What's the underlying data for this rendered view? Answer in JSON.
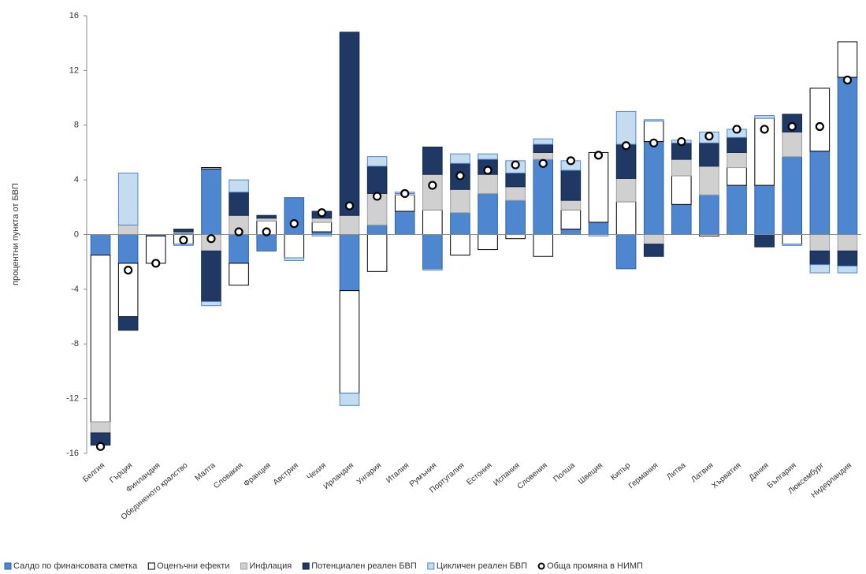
{
  "chart_data": {
    "type": "bar",
    "stacked": true,
    "ylabel": "процентни пункта от БВП",
    "categories": [
      "Белгия",
      "Гърция",
      "Финландия",
      "Обединеното кралство",
      "Малта",
      "Словакия",
      "Франция",
      "Австрия",
      "Чехия",
      "Ирландия",
      "Унгария",
      "Италия",
      "Румъния",
      "Португалия",
      "Естония",
      "Испания",
      "Словения",
      "Полша",
      "Швеция",
      "Кипър",
      "Германия",
      "Литва",
      "Латвия",
      "Хърватия",
      "Дания",
      "България",
      "Люксембург",
      "Нидерландия"
    ],
    "ylim": [
      -16,
      16
    ],
    "yticks": [
      -16,
      -12,
      -8,
      -4,
      0,
      4,
      8,
      12,
      16
    ],
    "series": [
      {
        "name": "Салдо по финансовата сметка",
        "color": "#4f86d0",
        "edgecolor": "#2f62a8",
        "values": [
          -1.5,
          -2.1,
          -0.1,
          0.1,
          4.8,
          -2.1,
          -1.2,
          2.7,
          0.2,
          -4.1,
          0.7,
          1.7,
          -2.5,
          1.6,
          3.0,
          2.5,
          5.5,
          0.4,
          0.9,
          -2.5,
          6.8,
          2.2,
          2.9,
          3.6,
          3.6,
          5.7,
          6.1,
          11.5
        ]
      },
      {
        "name": "Оценъчни ефекти",
        "color": "#ffffff",
        "edgecolor": "#000000",
        "values": [
          -12.2,
          -3.9,
          -2.0,
          -0.7,
          0.1,
          -1.6,
          1.0,
          -1.7,
          0.7,
          -7.5,
          -2.7,
          1.2,
          1.8,
          -1.5,
          -1.1,
          -0.3,
          -1.6,
          1.4,
          5.1,
          2.4,
          1.5,
          2.1,
          -0.1,
          1.3,
          4.9,
          -0.7,
          4.6,
          2.6
        ]
      },
      {
        "name": "Инфлация",
        "color": "#d0d0d0",
        "edgecolor": "#a0a0a0",
        "values": [
          -0.8,
          0.7,
          0,
          0.1,
          -1.2,
          1.4,
          0.2,
          0,
          0.3,
          1.4,
          2.3,
          0.1,
          2.6,
          1.7,
          1.4,
          1.0,
          0.5,
          0.7,
          0,
          1.7,
          -0.7,
          1.2,
          2.1,
          1.1,
          0,
          1.8,
          -1.2,
          -1.2
        ]
      },
      {
        "name": "Потенциален реален БВП",
        "color": "#1f3864",
        "edgecolor": "#14264a",
        "values": [
          -0.9,
          -1.0,
          0,
          0.2,
          -3.7,
          1.7,
          0.2,
          0,
          0.5,
          13.4,
          2.0,
          0,
          2.0,
          1.9,
          1.1,
          1.0,
          0.6,
          2.2,
          0,
          2.5,
          -0.9,
          1.2,
          1.7,
          1.1,
          -0.9,
          1.3,
          -1.0,
          -1.1
        ]
      },
      {
        "name": "Цикличен реален БВП",
        "color": "#c5dcf0",
        "edgecolor": "#4f86d0",
        "values": [
          0,
          3.8,
          0,
          -0.1,
          -0.3,
          0.9,
          0,
          -0.2,
          -0.1,
          -0.9,
          0.7,
          0.1,
          -0.1,
          0.7,
          0.4,
          0.9,
          0.4,
          0.7,
          -0.1,
          2.4,
          0.1,
          0.2,
          0.8,
          0.6,
          0.2,
          -0.1,
          -0.6,
          -0.5
        ]
      }
    ],
    "total": {
      "name": "Обща промяна в НИМП",
      "color": "#ffffff",
      "edgecolor": "#000000",
      "values": [
        -15.5,
        -2.6,
        -2.1,
        -0.4,
        -0.3,
        0.2,
        0.2,
        0.8,
        1.6,
        2.1,
        2.8,
        3.0,
        3.6,
        4.3,
        4.7,
        5.1,
        5.2,
        5.4,
        5.8,
        6.5,
        6.7,
        6.8,
        7.2,
        7.7,
        7.7,
        7.9,
        7.9,
        11.3
      ]
    }
  }
}
